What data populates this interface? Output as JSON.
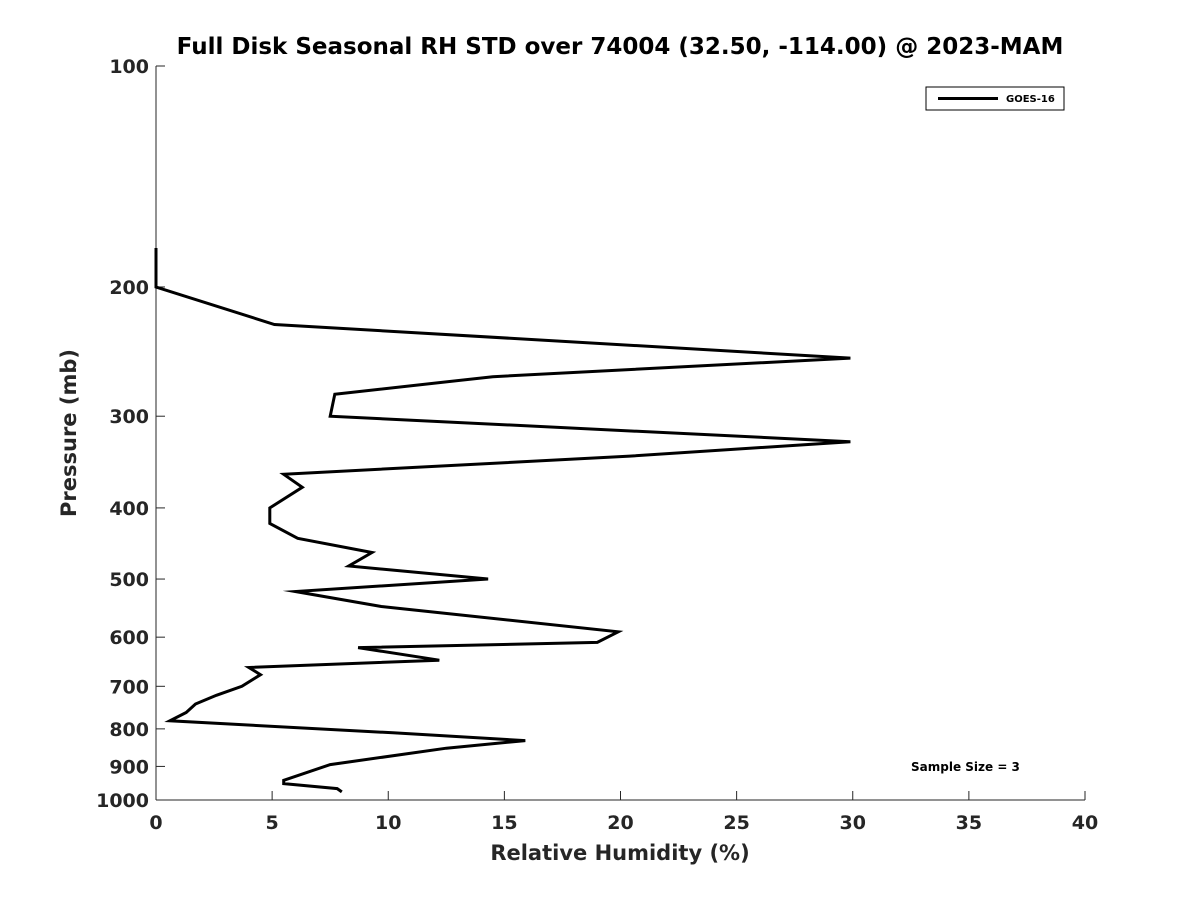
{
  "chart_data": {
    "type": "line",
    "title": "Full Disk Seasonal RH STD over 74004 (32.50, -114.00) @ 2023-MAM",
    "xlabel": "Relative Humidity (%)",
    "ylabel": "Pressure (mb)",
    "xlim": [
      0,
      40
    ],
    "ylim": [
      100,
      1000
    ],
    "yscale": "log",
    "yreversed": true,
    "grid": false,
    "x_ticks": [
      0,
      5,
      10,
      15,
      20,
      25,
      30,
      35,
      40
    ],
    "y_ticks": [
      100,
      200,
      300,
      400,
      500,
      600,
      700,
      800,
      900,
      1000
    ],
    "legend": {
      "position": "top-right",
      "entries": [
        "GOES-16"
      ]
    },
    "annotation": "Sample Size = 3",
    "series": [
      {
        "name": "GOES-16",
        "color": "#000000",
        "points": [
          {
            "x": 0.0,
            "p": 177
          },
          {
            "x": 0.0,
            "p": 200
          },
          {
            "x": 5.1,
            "p": 225
          },
          {
            "x": 29.9,
            "p": 250
          },
          {
            "x": 14.5,
            "p": 265
          },
          {
            "x": 7.7,
            "p": 280
          },
          {
            "x": 7.5,
            "p": 300
          },
          {
            "x": 29.9,
            "p": 325
          },
          {
            "x": 20.4,
            "p": 340
          },
          {
            "x": 5.5,
            "p": 360
          },
          {
            "x": 6.3,
            "p": 375
          },
          {
            "x": 4.9,
            "p": 400
          },
          {
            "x": 4.9,
            "p": 420
          },
          {
            "x": 6.1,
            "p": 440
          },
          {
            "x": 9.3,
            "p": 460
          },
          {
            "x": 8.3,
            "p": 480
          },
          {
            "x": 14.3,
            "p": 500
          },
          {
            "x": 6.0,
            "p": 520
          },
          {
            "x": 9.7,
            "p": 545
          },
          {
            "x": 19.9,
            "p": 590
          },
          {
            "x": 19.0,
            "p": 610
          },
          {
            "x": 8.7,
            "p": 620
          },
          {
            "x": 12.2,
            "p": 645
          },
          {
            "x": 4.0,
            "p": 660
          },
          {
            "x": 4.5,
            "p": 675
          },
          {
            "x": 3.7,
            "p": 700
          },
          {
            "x": 2.6,
            "p": 720
          },
          {
            "x": 1.7,
            "p": 740
          },
          {
            "x": 1.3,
            "p": 760
          },
          {
            "x": 0.6,
            "p": 780
          },
          {
            "x": 10.2,
            "p": 810
          },
          {
            "x": 15.9,
            "p": 830
          },
          {
            "x": 12.5,
            "p": 850
          },
          {
            "x": 7.5,
            "p": 895
          },
          {
            "x": 5.5,
            "p": 940
          },
          {
            "x": 5.5,
            "p": 950
          },
          {
            "x": 7.8,
            "p": 965
          },
          {
            "x": 8.0,
            "p": 975
          }
        ]
      }
    ]
  }
}
